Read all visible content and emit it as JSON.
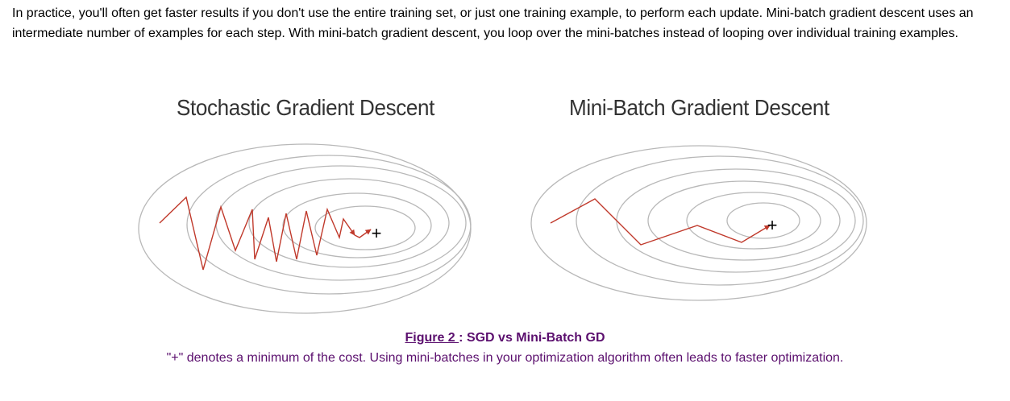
{
  "intro": {
    "text": "In practice, you'll often get faster results if you don't use the entire training set, or just one training example, to perform each update. Mini-batch gradient descent uses an intermediate number of examples for each step. With mini-batch gradient descent, you loop over the mini-batches instead of looping over individual training examples."
  },
  "figure": {
    "left_title": "Stochastic Gradient Descent",
    "right_title": "Mini-Batch Gradient Descent",
    "minimum_marker": "+",
    "caption_link": "Figure 2 ",
    "caption_separator": ":",
    "caption_title": "SGD vs Mini-Batch GD",
    "caption_note": "\"+\" denotes a minimum of the cost. Using mini-batches in your optimization algorithm often leads to faster optimization."
  },
  "colors": {
    "text": "#000000",
    "caption": "#5b0f6e",
    "contour": "#b8b8b8",
    "path": "#c0392b"
  }
}
